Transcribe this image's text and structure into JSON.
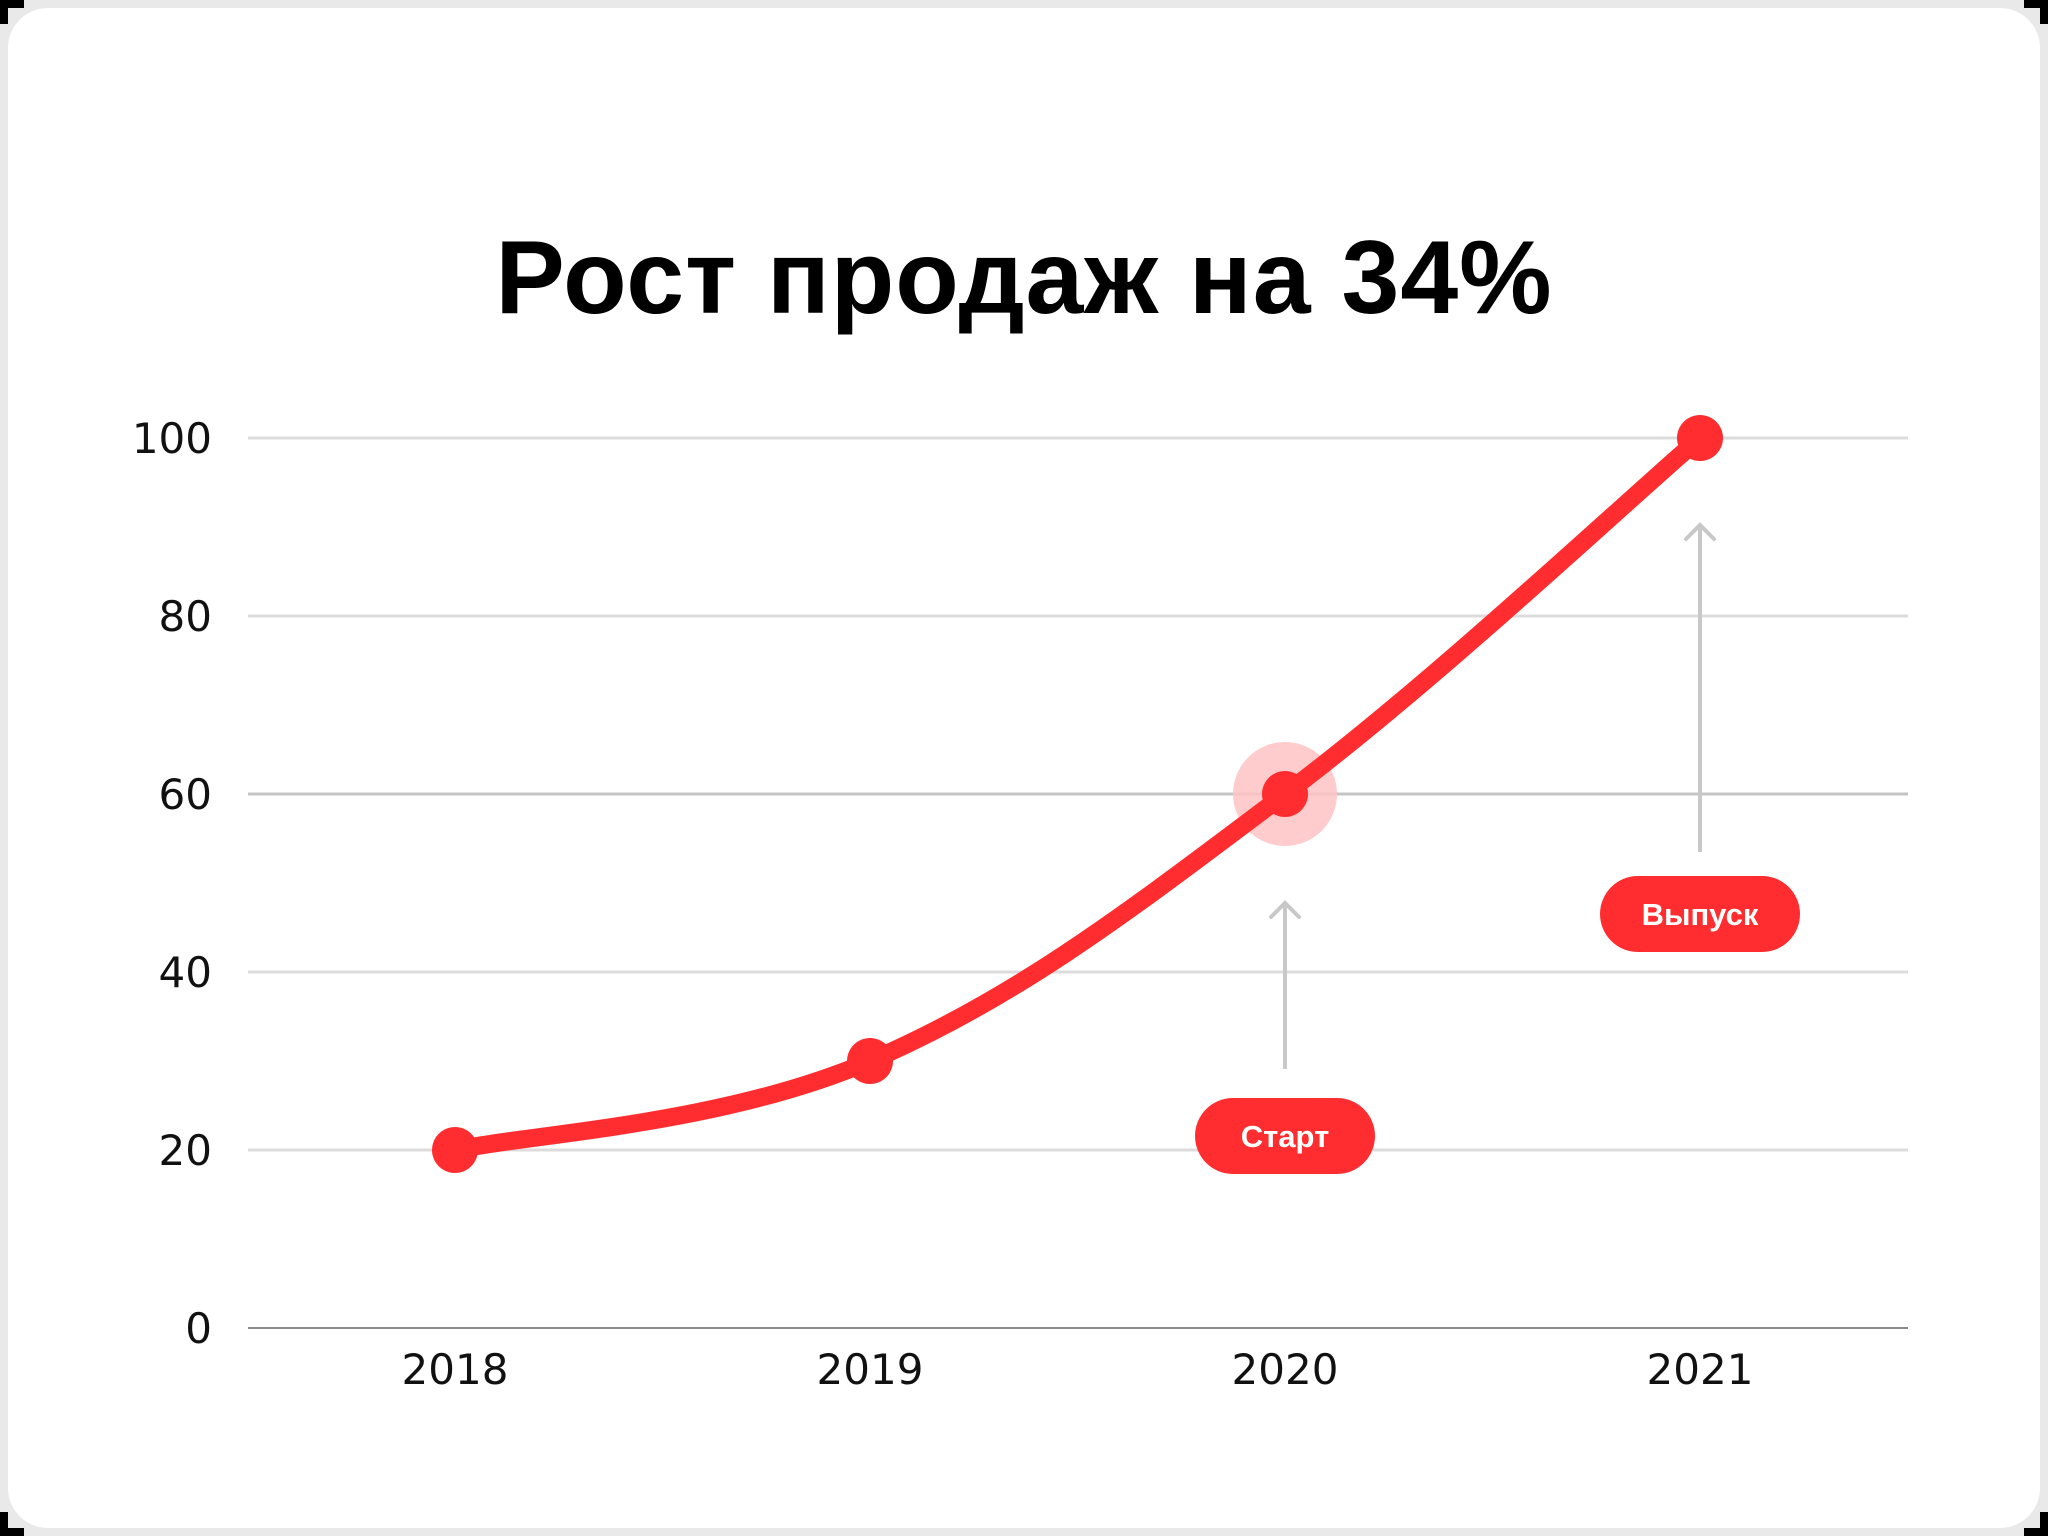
{
  "title": "Рост продаж на 34%",
  "colors": {
    "background": "#e9e9e9",
    "card": "#ffffff",
    "line": "#ff2d2f",
    "halo": "#ffc3c4",
    "grid": "#dcdcdc",
    "grid_highlight": "#c4c4c4",
    "axis": "#8a8a8a",
    "arrow": "#c8c8c8",
    "text": "#111111",
    "pill_text": "#ffffff"
  },
  "chart_data": {
    "type": "line",
    "title": "Рост продаж на 34%",
    "xlabel": "",
    "ylabel": "",
    "categories": [
      "2018",
      "2019",
      "2020",
      "2021"
    ],
    "values": [
      20,
      30,
      60,
      100
    ],
    "ylim": [
      0,
      100
    ],
    "yticks": [
      0,
      20,
      40,
      60,
      80,
      100
    ],
    "grid": true,
    "legend": null,
    "highlight_index": 2,
    "annotations": [
      {
        "label": "Старт",
        "category": "2020",
        "position": "below-point"
      },
      {
        "label": "Выпуск",
        "category": "2021",
        "position": "below-point"
      }
    ]
  }
}
